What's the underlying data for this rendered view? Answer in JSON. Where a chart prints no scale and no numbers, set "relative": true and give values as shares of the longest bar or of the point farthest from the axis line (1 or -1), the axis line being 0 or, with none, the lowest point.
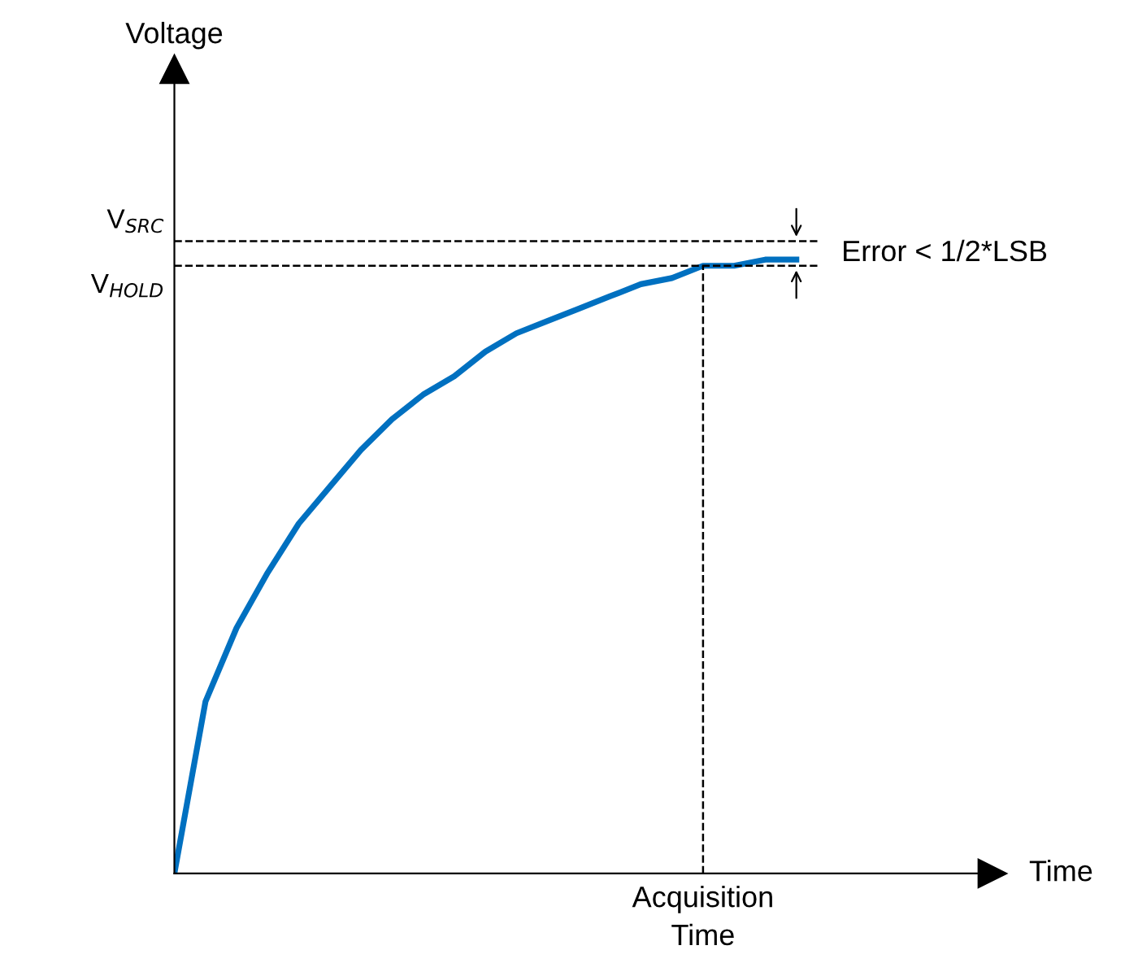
{
  "chart_data": {
    "type": "line",
    "relative": true,
    "categories": [
      null,
      null,
      null,
      null,
      null,
      null,
      null,
      null,
      null,
      null,
      null,
      null,
      null,
      null,
      null,
      null,
      null,
      null,
      null,
      null,
      null
    ],
    "series": [
      {
        "color": "#0070c0",
        "values": [
          0,
          0.28,
          0.4,
          0.49,
          0.57,
          0.63,
          0.69,
          0.74,
          0.78,
          0.81,
          0.85,
          0.88,
          0.9,
          0.92,
          0.94,
          0.96,
          0.97,
          0.99,
          0.99,
          1.0,
          1.0
        ]
      }
    ],
    "ref_lines": [
      {
        "axis": "y",
        "value": 1.03,
        "label": "V$_{SRC}$",
        "line_style": "dashed",
        "color": "#000000"
      },
      {
        "axis": "y",
        "value": 0.99,
        "label": "V$_{HOLD}$",
        "line_style": "dashed",
        "color": "#000000"
      }
    ],
    "annotations": [
      "Voltage",
      "Time",
      "Acquisition Time",
      "Error < 1/2*LSB"
    ],
    "grid": false,
    "legend": false,
    "marker": "none",
    "line_style": "solid"
  }
}
